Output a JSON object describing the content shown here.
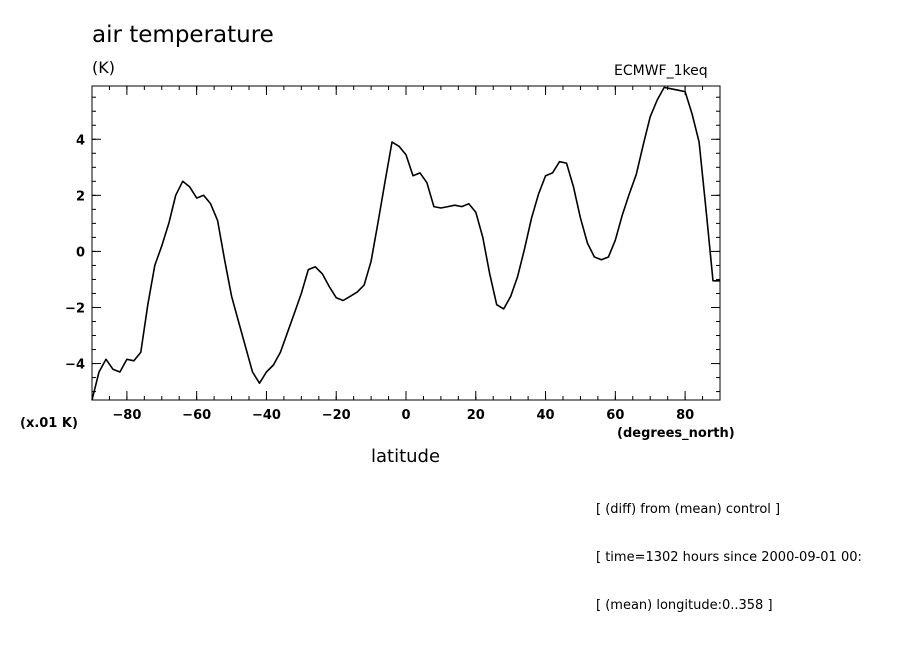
{
  "figure": {
    "title": "air temperature",
    "units_label": "(K)",
    "dataset": "ECMWF_1keq",
    "scale_factor_label": "(x.01 K)",
    "x_units_label": "(degrees_north)",
    "xlabel": "latitude",
    "notes": [
      "[ (diff) from (mean) control ]",
      "[ time=1302 hours since 2000-09-01 00:",
      "[ (mean) longitude:0..358 ]"
    ]
  },
  "chart_data": {
    "type": "line",
    "title": "air temperature",
    "xlabel": "latitude",
    "ylabel": "(K)",
    "xlim": [
      -90,
      90
    ],
    "ylim": [
      -5.3,
      5.9
    ],
    "x_ticks": [
      -80,
      -60,
      -40,
      -20,
      0,
      20,
      40,
      60,
      80
    ],
    "y_ticks": [
      -4,
      -2,
      0,
      2,
      4
    ],
    "grid": false,
    "series": [
      {
        "name": "ECMWF_1keq",
        "color": "#000000",
        "x": [
          -90,
          -88,
          -86,
          -84,
          -82,
          -80,
          -78,
          -76,
          -74,
          -72,
          -70,
          -68,
          -66,
          -64,
          -62,
          -60,
          -58,
          -56,
          -54,
          -52,
          -50,
          -48,
          -46,
          -44,
          -42,
          -40,
          -38,
          -36,
          -34,
          -32,
          -30,
          -28,
          -26,
          -24,
          -22,
          -20,
          -18,
          -16,
          -14,
          -12,
          -10,
          -8,
          -6,
          -4,
          -2,
          0,
          2,
          4,
          6,
          8,
          10,
          12,
          14,
          16,
          18,
          20,
          22,
          24,
          26,
          28,
          30,
          32,
          34,
          36,
          38,
          40,
          42,
          44,
          46,
          48,
          50,
          52,
          54,
          56,
          58,
          60,
          62,
          64,
          66,
          68,
          70,
          72,
          74,
          76,
          78,
          80,
          82,
          84,
          86,
          88,
          90
        ],
        "y": [
          -5.3,
          -4.3,
          -3.85,
          -4.2,
          -4.3,
          -3.85,
          -3.9,
          -3.6,
          -1.9,
          -0.5,
          0.2,
          1.0,
          2.0,
          2.5,
          2.3,
          1.9,
          2.0,
          1.7,
          1.1,
          -0.3,
          -1.6,
          -2.5,
          -3.4,
          -4.3,
          -4.7,
          -4.3,
          -4.05,
          -3.6,
          -2.9,
          -2.2,
          -1.5,
          -0.65,
          -0.55,
          -0.8,
          -1.25,
          -1.65,
          -1.75,
          -1.6,
          -1.45,
          -1.2,
          -0.35,
          1.05,
          2.5,
          3.9,
          3.75,
          3.45,
          2.7,
          2.8,
          2.45,
          1.6,
          1.55,
          1.6,
          1.65,
          1.6,
          1.7,
          1.4,
          0.5,
          -0.8,
          -1.9,
          -2.05,
          -1.6,
          -0.9,
          0.1,
          1.2,
          2.05,
          2.7,
          2.8,
          3.2,
          3.15,
          2.3,
          1.2,
          0.3,
          -0.2,
          -0.3,
          -0.2,
          0.4,
          1.3,
          2.05,
          2.75,
          3.8,
          4.8,
          5.4,
          5.85,
          5.8,
          5.75,
          5.7,
          4.9,
          3.9,
          1.5,
          -1.05,
          -1.05
        ]
      }
    ]
  }
}
